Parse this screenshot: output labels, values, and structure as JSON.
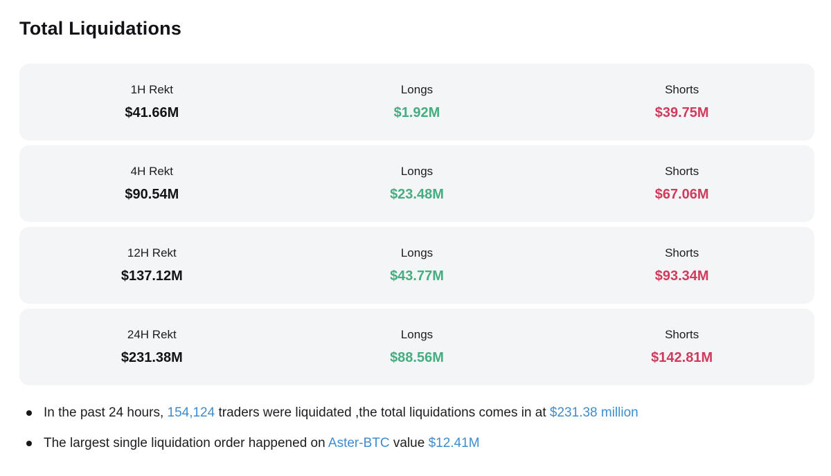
{
  "page": {
    "title": "Total Liquidations"
  },
  "colors": {
    "longs_green": "#45ad80",
    "shorts_red": "#d03a5c",
    "link_blue": "#3e8ccd",
    "card_background": "#f4f5f6"
  },
  "rows": [
    {
      "period_label": "1H Rekt",
      "total": "$41.66M",
      "longs_label": "Longs",
      "longs_value": "$1.92M",
      "shorts_label": "Shorts",
      "shorts_value": "$39.75M"
    },
    {
      "period_label": "4H Rekt",
      "total": "$90.54M",
      "longs_label": "Longs",
      "longs_value": "$23.48M",
      "shorts_label": "Shorts",
      "shorts_value": "$67.06M"
    },
    {
      "period_label": "12H Rekt",
      "total": "$137.12M",
      "longs_label": "Longs",
      "longs_value": "$43.77M",
      "shorts_label": "Shorts",
      "shorts_value": "$93.34M"
    },
    {
      "period_label": "24H Rekt",
      "total": "$231.38M",
      "longs_label": "Longs",
      "longs_value": "$88.56M",
      "shorts_label": "Shorts",
      "shorts_value": "$142.81M"
    }
  ],
  "notes": [
    {
      "segments": [
        {
          "text": "In the past 24 hours, "
        },
        {
          "text": "154,124"
        },
        {
          "text": " traders were liquidated ,the total liquidations comes in at "
        },
        {
          "text": "$231.38 million"
        }
      ]
    },
    {
      "segments": [
        {
          "text": "The largest single liquidation order happened on "
        },
        {
          "text": "Aster-BTC"
        },
        {
          "text": " value "
        },
        {
          "text": "$12.41M"
        }
      ]
    }
  ]
}
